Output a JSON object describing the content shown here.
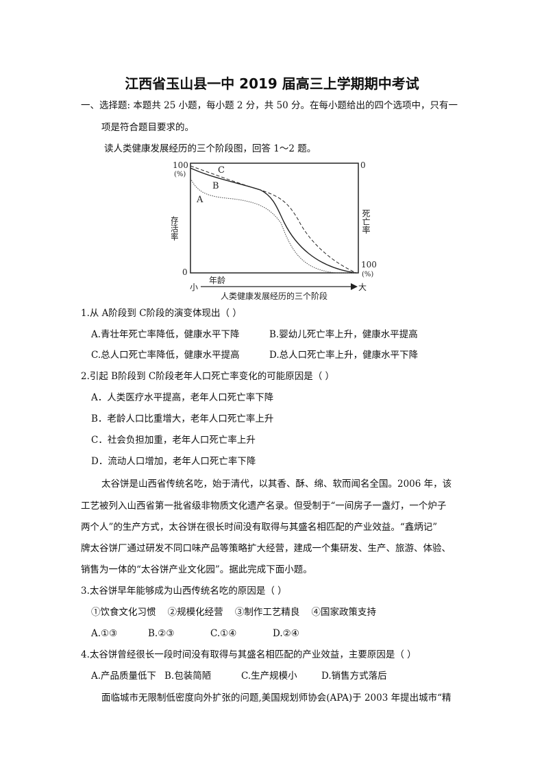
{
  "title": "江西省玉山县一中 2019 届高三上学期期中考试",
  "section": {
    "line1": "一、选择题: 本题共 25 小题，每小题 2 分，共 50 分。在每小题给出的四个选项中，只有一",
    "line2": "项是符合题目要求的。"
  },
  "intro": "读人类健康发展经历的三个阶段图，回答 1～2 题。",
  "figure": {
    "left_top": "100",
    "left_unit": "(%)",
    "left_label": "存活率",
    "left_bottom": "0",
    "right_top": "0",
    "right_label": "死亡率",
    "right_bottom": "100",
    "right_unit": "(%)",
    "x_small": "小",
    "x_label": "年龄",
    "x_large": "大",
    "curve_a": "A",
    "curve_b": "B",
    "curve_c": "C",
    "caption": "人类健康发展经历的三个阶段"
  },
  "q1": {
    "stem": "1.从 A阶段到 C阶段的演变体现出（    ）",
    "a": "A.青壮年死亡率降低，健康水平下降",
    "b": "B.婴幼儿死亡率上升，健康水平提高",
    "c": "C.总人口死亡率降低，健康水平提高",
    "d": "D.总人口死亡率上升，健康水平下降"
  },
  "q2": {
    "stem": "2.引起 B阶段到 C阶段老年人口死亡率变化的可能原因是（    ）",
    "a": "A．人类医疗水平提高，老年人口死亡率下降",
    "b": "B．老龄人口比重增大，老年人口死亡率上升",
    "c": "C．社会负担加重，老年人口死亡率上升",
    "d": "D．流动人口增加，老年人口死亡率下降"
  },
  "passage": [
    "太谷饼是山西省传统名吃，始于清代，以其香、酥、绵、软而闻名全国。2006 年，该",
    "工艺被列入山西省第一批省级非物质文化遗产名录。但受制于“一间房子一盏灯，一个炉子",
    "两个人”的生产方式，太谷饼在很长时间没有取得与其盛名相匹配的产业效益。“鑫炳记”",
    "牌太谷饼厂通过研发不同口味产品等策略扩大经营，建成一个集研发、生产、旅游、体验、",
    "销售为一体的“太谷饼产业文化园”。据此完成下面小题。"
  ],
  "q3": {
    "stem": "3.太谷饼早年能够成为山西传统名吃的原因是（    ）",
    "items": "①饮食文化习惯    ②规模化经营    ③制作工艺精良    ④国家政策支持",
    "a": "A.①③",
    "b": "B.②③",
    "c": "C.①④",
    "d": "D.②④"
  },
  "q4": {
    "stem": "4.太谷饼曾经很长一段时间没有取得与其盛名相匹配的产业效益，主要原因是（    ）",
    "a": "A.产品质量低下",
    "b": "B.包装简陋",
    "c": "C.生产规模小",
    "d": "D.销售方式落后"
  },
  "last": "面临城市无限制低密度向外扩张的问题,美国规划师协会(APA)于 2003 年提出城市“精"
}
